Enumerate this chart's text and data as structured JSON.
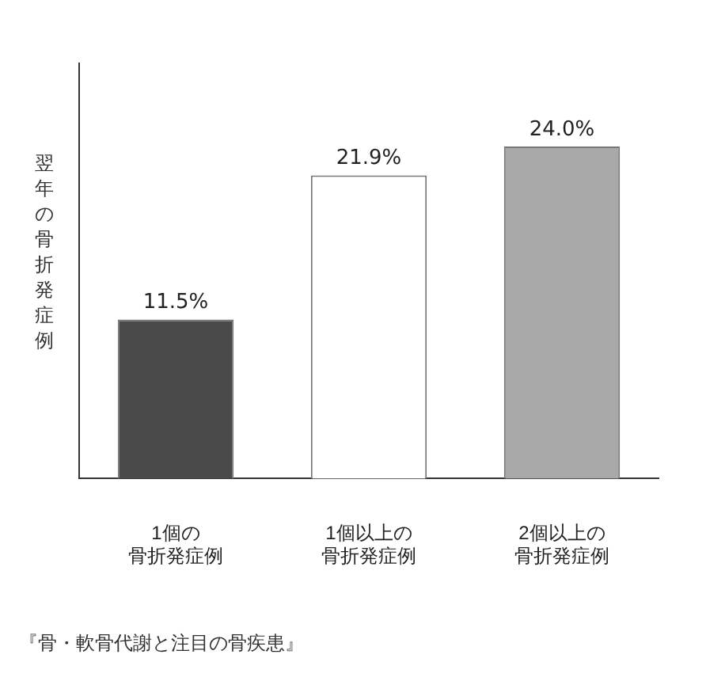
{
  "chart_data": {
    "type": "bar",
    "ylabel": "翌年の骨折発症例",
    "categories": [
      "1個の骨折発症例",
      "1個以上の骨折発症例",
      "2個以上の骨折発症例"
    ],
    "values": [
      11.5,
      21.9,
      24.0
    ],
    "colors": [
      "#4a4a4a",
      "#ffffff",
      "#a9a9a9"
    ],
    "value_labels": [
      "11.5%",
      "21.9%",
      "24.0%"
    ],
    "annotations": [
      "『骨・軟骨代謝と注目の骨疾患』"
    ],
    "grid": false,
    "legend": false
  }
}
